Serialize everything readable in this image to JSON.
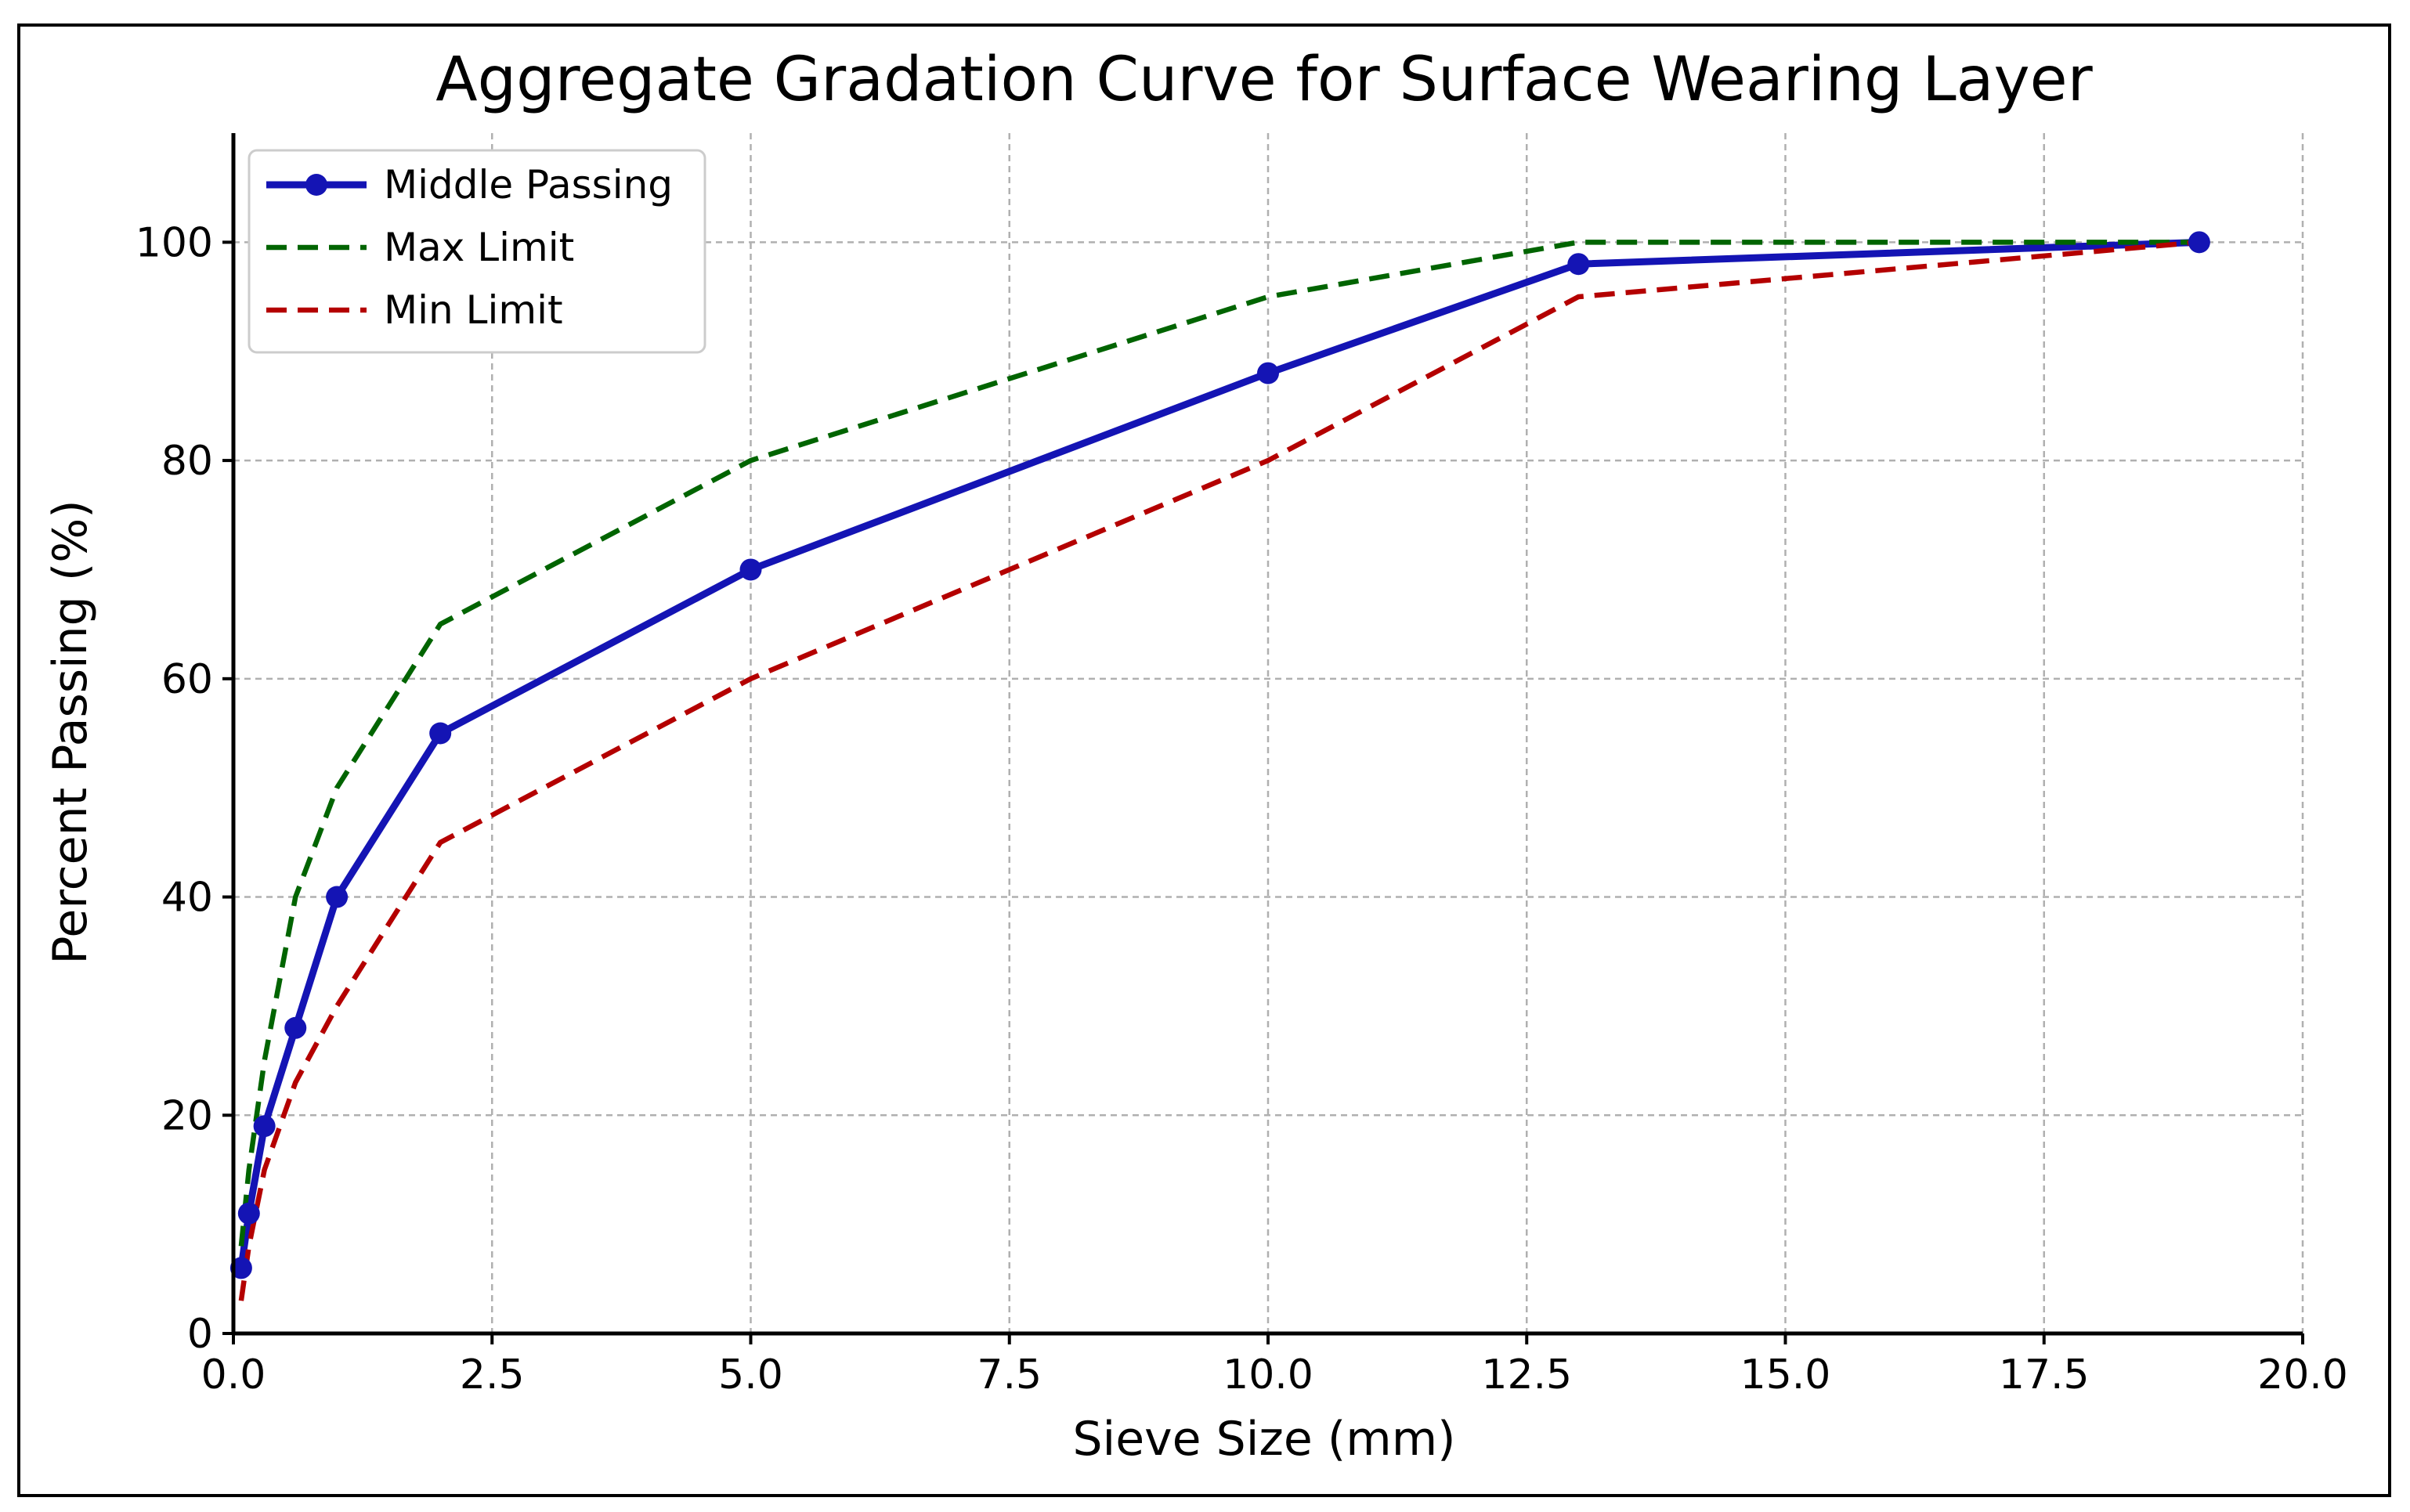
{
  "chart_data": {
    "type": "line",
    "title": "Aggregate Gradation Curve for Surface Wearing Layer",
    "xlabel": "Sieve Size (mm)",
    "ylabel": "Percent Passing (%)",
    "xlim": [
      0,
      20
    ],
    "ylim": [
      0,
      110
    ],
    "xticks": [
      0,
      2.5,
      5,
      7.5,
      10,
      12.5,
      15,
      17.5,
      20
    ],
    "xtick_labels": [
      "0.0",
      "2.5",
      "5.0",
      "7.5",
      "10.0",
      "12.5",
      "15.0",
      "17.5",
      "20.0"
    ],
    "yticks": [
      0,
      20,
      40,
      60,
      80,
      100
    ],
    "ytick_labels": [
      "0",
      "20",
      "40",
      "60",
      "80",
      "100"
    ],
    "grid": true,
    "legend_position": "top-left",
    "x": [
      0.075,
      0.15,
      0.3,
      0.6,
      1.0,
      2.0,
      5.0,
      10.0,
      13.0,
      19.0
    ],
    "series": [
      {
        "name": "Middle Passing",
        "values": [
          6,
          11,
          19,
          28,
          40,
          55,
          70,
          88,
          98,
          100
        ],
        "color": "#1414b4",
        "style": "solid",
        "marker": "circle"
      },
      {
        "name": "Max Limit",
        "values": [
          8,
          15,
          25,
          40,
          50,
          65,
          80,
          95,
          100,
          100
        ],
        "color": "#006400",
        "style": "dashed",
        "marker": "none"
      },
      {
        "name": "Min Limit",
        "values": [
          3,
          8,
          15,
          23,
          30,
          45,
          60,
          80,
          95,
          100
        ],
        "color": "#b40000",
        "style": "dashed",
        "marker": "none"
      }
    ]
  }
}
